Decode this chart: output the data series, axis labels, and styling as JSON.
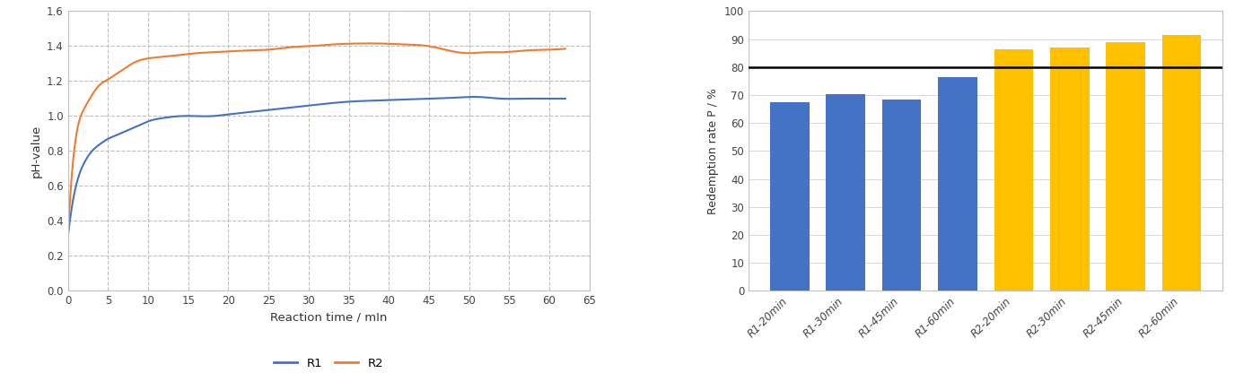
{
  "line_chart": {
    "xlabel": "Reaction time / mIn",
    "ylabel": "pH-value",
    "xlim": [
      0,
      65
    ],
    "ylim": [
      0,
      1.6
    ],
    "xticks": [
      0,
      5,
      10,
      15,
      20,
      25,
      30,
      35,
      40,
      45,
      50,
      55,
      60,
      65
    ],
    "yticks": [
      0,
      0.2,
      0.4,
      0.6,
      0.8,
      1.0,
      1.2,
      1.4,
      1.6
    ],
    "r1_color": "#4472C4",
    "r2_color": "#ED7D31",
    "legend_labels": [
      "R1",
      "R2"
    ],
    "r1_x": [
      0,
      1,
      2,
      3,
      4,
      5,
      6,
      7,
      8,
      9,
      10,
      12,
      14,
      16,
      18,
      20,
      22,
      25,
      28,
      30,
      33,
      36,
      39,
      42,
      45,
      48,
      51,
      54,
      57,
      60,
      62
    ],
    "r1_y": [
      0.31,
      0.6,
      0.73,
      0.8,
      0.84,
      0.87,
      0.89,
      0.91,
      0.93,
      0.95,
      0.97,
      0.99,
      1.0,
      1.0,
      1.0,
      1.01,
      1.02,
      1.035,
      1.05,
      1.06,
      1.075,
      1.085,
      1.09,
      1.095,
      1.1,
      1.105,
      1.11,
      1.1,
      1.1,
      1.1,
      1.1
    ],
    "r2_x": [
      0,
      1,
      2,
      3,
      4,
      5,
      6,
      7,
      8,
      9,
      10,
      12,
      14,
      16,
      18,
      20,
      22,
      25,
      28,
      30,
      33,
      36,
      39,
      42,
      45,
      48,
      50,
      52,
      54,
      57,
      60,
      62
    ],
    "r2_y": [
      0.31,
      0.88,
      1.04,
      1.12,
      1.18,
      1.21,
      1.24,
      1.27,
      1.3,
      1.32,
      1.33,
      1.34,
      1.35,
      1.36,
      1.365,
      1.37,
      1.375,
      1.38,
      1.395,
      1.4,
      1.41,
      1.415,
      1.415,
      1.41,
      1.4,
      1.37,
      1.36,
      1.365,
      1.365,
      1.375,
      1.38,
      1.385
    ]
  },
  "bar_chart": {
    "categories": [
      "R1-20min",
      "R1-30min",
      "R1-45min",
      "R1-60min",
      "R2-20min",
      "R2-30min",
      "R2-45min",
      "R2-60min"
    ],
    "values": [
      67.5,
      70.5,
      68.5,
      76.5,
      86.5,
      87.0,
      89.0,
      91.5
    ],
    "colors": [
      "#4472C4",
      "#4472C4",
      "#4472C4",
      "#4472C4",
      "#FFC000",
      "#FFC000",
      "#FFC000",
      "#FFC000"
    ],
    "ylabel": "Redemption rate P / %",
    "ylim": [
      0,
      100
    ],
    "yticks": [
      0,
      10,
      20,
      30,
      40,
      50,
      60,
      70,
      80,
      90,
      100
    ],
    "hline_y": 80,
    "hline_color": "#000000"
  },
  "fig_width": 13.76,
  "fig_height": 4.16,
  "bg_color": "#FFFFFF"
}
